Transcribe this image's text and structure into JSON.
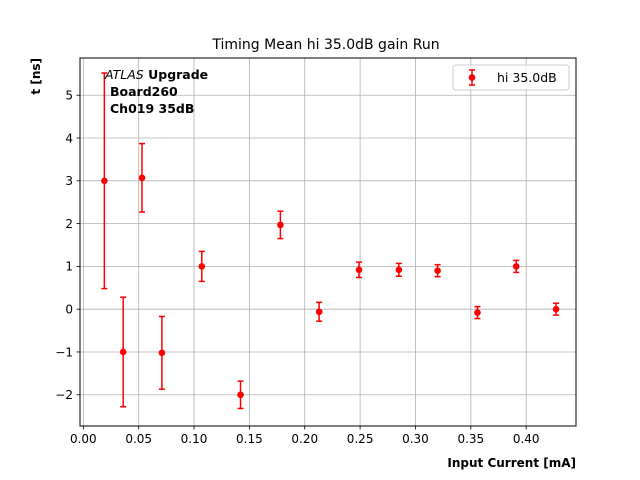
{
  "chart_data": {
    "type": "scatter",
    "title": "Timing Mean hi 35.0dB gain Run",
    "xlabel": "Input Current [mA]",
    "ylabel": "t [ns]",
    "xlim": [
      -0.003,
      0.445
    ],
    "ylim": [
      -2.73,
      5.87
    ],
    "grid": true,
    "legend_position": "top-right",
    "x_ticks": [
      "0.00",
      "0.05",
      "0.10",
      "0.15",
      "0.20",
      "0.25",
      "0.30",
      "0.35",
      "0.40"
    ],
    "x_tick_values": [
      0,
      0.05,
      0.1,
      0.15,
      0.2,
      0.25,
      0.3,
      0.35,
      0.4
    ],
    "y_ticks": [
      "−2",
      "−1",
      "0",
      "1",
      "2",
      "3",
      "4",
      "5"
    ],
    "y_tick_values": [
      -2,
      -1,
      0,
      1,
      2,
      3,
      4,
      5
    ],
    "annotations": {
      "atlas": "ATLAS",
      "upgrade": "Upgrade",
      "board": "Board260",
      "channel": "Ch019 35dB"
    },
    "series": [
      {
        "name": "hi 35.0dB",
        "color": "#ff0000",
        "x": [
          0.019,
          0.036,
          0.053,
          0.071,
          0.107,
          0.142,
          0.178,
          0.213,
          0.249,
          0.285,
          0.32,
          0.356,
          0.391,
          0.427
        ],
        "y": [
          3.0,
          -1.0,
          3.07,
          -1.02,
          1.0,
          -2.0,
          1.97,
          -0.06,
          0.92,
          0.92,
          0.9,
          -0.08,
          1.0,
          0.0
        ],
        "yerr": [
          2.52,
          1.28,
          0.8,
          0.85,
          0.35,
          0.32,
          0.32,
          0.22,
          0.18,
          0.15,
          0.14,
          0.14,
          0.14,
          0.14
        ]
      }
    ]
  }
}
